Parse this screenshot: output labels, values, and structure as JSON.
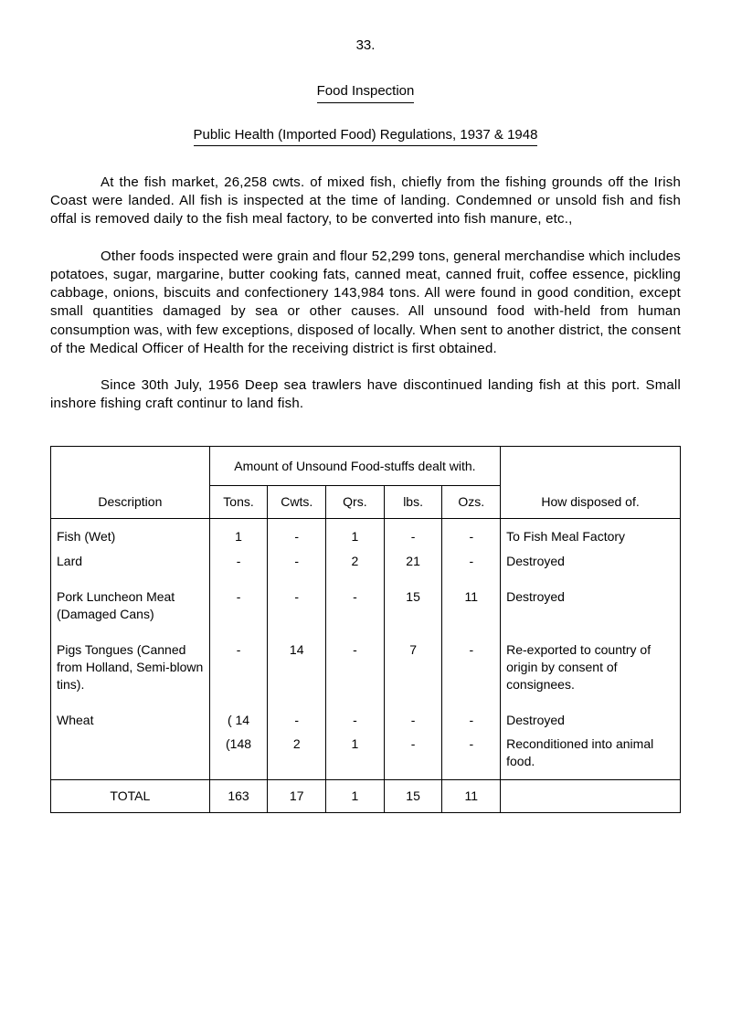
{
  "page_number": "33.",
  "title": "Food Inspection",
  "subtitle": "Public Health (Imported Food) Regulations, 1937 & 1948",
  "paragraphs": {
    "p1": "At the fish market, 26,258 cwts. of mixed fish, chiefly from the fishing grounds off the Irish Coast were landed. All fish is inspected at the time of landing. Condemned or unsold fish and fish offal is removed daily to the fish meal factory, to be converted into fish manure, etc.,",
    "p2": "Other foods inspected were grain and flour 52,299 tons, general merchandise which includes potatoes, sugar, margarine, butter cooking fats, canned meat, canned fruit, coffee essence, pickling cabbage, onions, biscuits and confectionery 143,984 tons. All were found in good condition, except small quantities damaged by sea or other causes. All unsound food with-held from human consumption was, with few exceptions, disposed of locally. When sent to another district, the consent of the Medical Officer of Health for the receiving district is first obtained.",
    "p3": "Since 30th July, 1956 Deep sea trawlers have discontinued landing fish at this port. Small inshore fishing craft continur to land fish."
  },
  "table": {
    "amount_header": "Amount of Unsound Food-stuffs dealt with.",
    "columns": [
      "Description",
      "Tons.",
      "Cwts.",
      "Qrs.",
      "lbs.",
      "Ozs.",
      "How disposed of."
    ],
    "rows": [
      {
        "desc": "Fish (Wet)",
        "tons": "1",
        "cwts": "-",
        "qrs": "1",
        "lbs": "-",
        "ozs": "-",
        "disposed": "To Fish Meal Factory"
      },
      {
        "desc": "Lard",
        "tons": "-",
        "cwts": "-",
        "qrs": "2",
        "lbs": "21",
        "ozs": "-",
        "disposed": "Destroyed"
      },
      {
        "desc": "",
        "tons": "",
        "cwts": "",
        "qrs": "",
        "lbs": "",
        "ozs": "",
        "disposed": ""
      },
      {
        "desc": "Pork Luncheon Meat (Damaged Cans)",
        "tons": "-",
        "cwts": "-",
        "qrs": "-",
        "lbs": "15",
        "ozs": "11",
        "disposed": "Destroyed"
      },
      {
        "desc": "",
        "tons": "",
        "cwts": "",
        "qrs": "",
        "lbs": "",
        "ozs": "",
        "disposed": ""
      },
      {
        "desc": "Pigs Tongues (Canned from Holland, Semi-blown tins).",
        "tons": "-",
        "cwts": "14",
        "qrs": "-",
        "lbs": "7",
        "ozs": "-",
        "disposed": "Re-exported to country of origin by consent of consignees."
      },
      {
        "desc": "",
        "tons": "",
        "cwts": "",
        "qrs": "",
        "lbs": "",
        "ozs": "",
        "disposed": ""
      },
      {
        "desc": "Wheat",
        "tons": "( 14",
        "cwts": "-",
        "qrs": "-",
        "lbs": "-",
        "ozs": "-",
        "disposed": "Destroyed"
      },
      {
        "desc": "",
        "tons": "(148",
        "cwts": "2",
        "qrs": "1",
        "lbs": "-",
        "ozs": "-",
        "disposed": "Reconditioned into animal food."
      }
    ],
    "total": {
      "label": "TOTAL",
      "tons": "163",
      "cwts": "17",
      "qrs": "1",
      "lbs": "15",
      "ozs": "11",
      "disposed": ""
    }
  }
}
